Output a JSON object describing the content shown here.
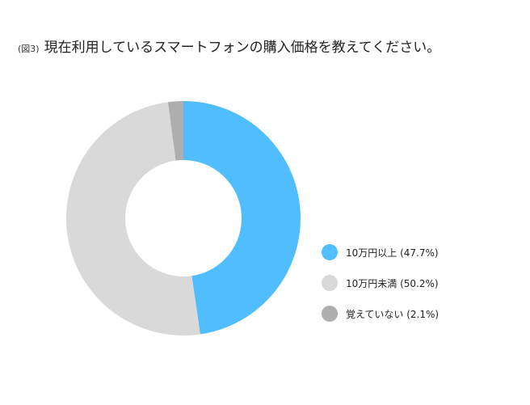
{
  "figure": {
    "label": "(図3)",
    "title": "現在利用しているスマートフォンの購入価格を教えてください。"
  },
  "chart_data": {
    "type": "pie",
    "subtype": "donut",
    "title": "現在利用しているスマートフォンの購入価格を教えてください。",
    "legend_position": "right",
    "slices": [
      {
        "label": "10万円以上",
        "value": 47.7,
        "color": "#4FBDFE",
        "legend_text": "10万円以上 (47.7%)"
      },
      {
        "label": "10万円未満",
        "value": 50.2,
        "color": "#D9D9D9",
        "legend_text": "10万円未満 (50.2%)"
      },
      {
        "label": "覚えていない",
        "value": 2.1,
        "color": "#AEAEAE",
        "legend_text": "覚えていない (2.1%)"
      }
    ]
  }
}
